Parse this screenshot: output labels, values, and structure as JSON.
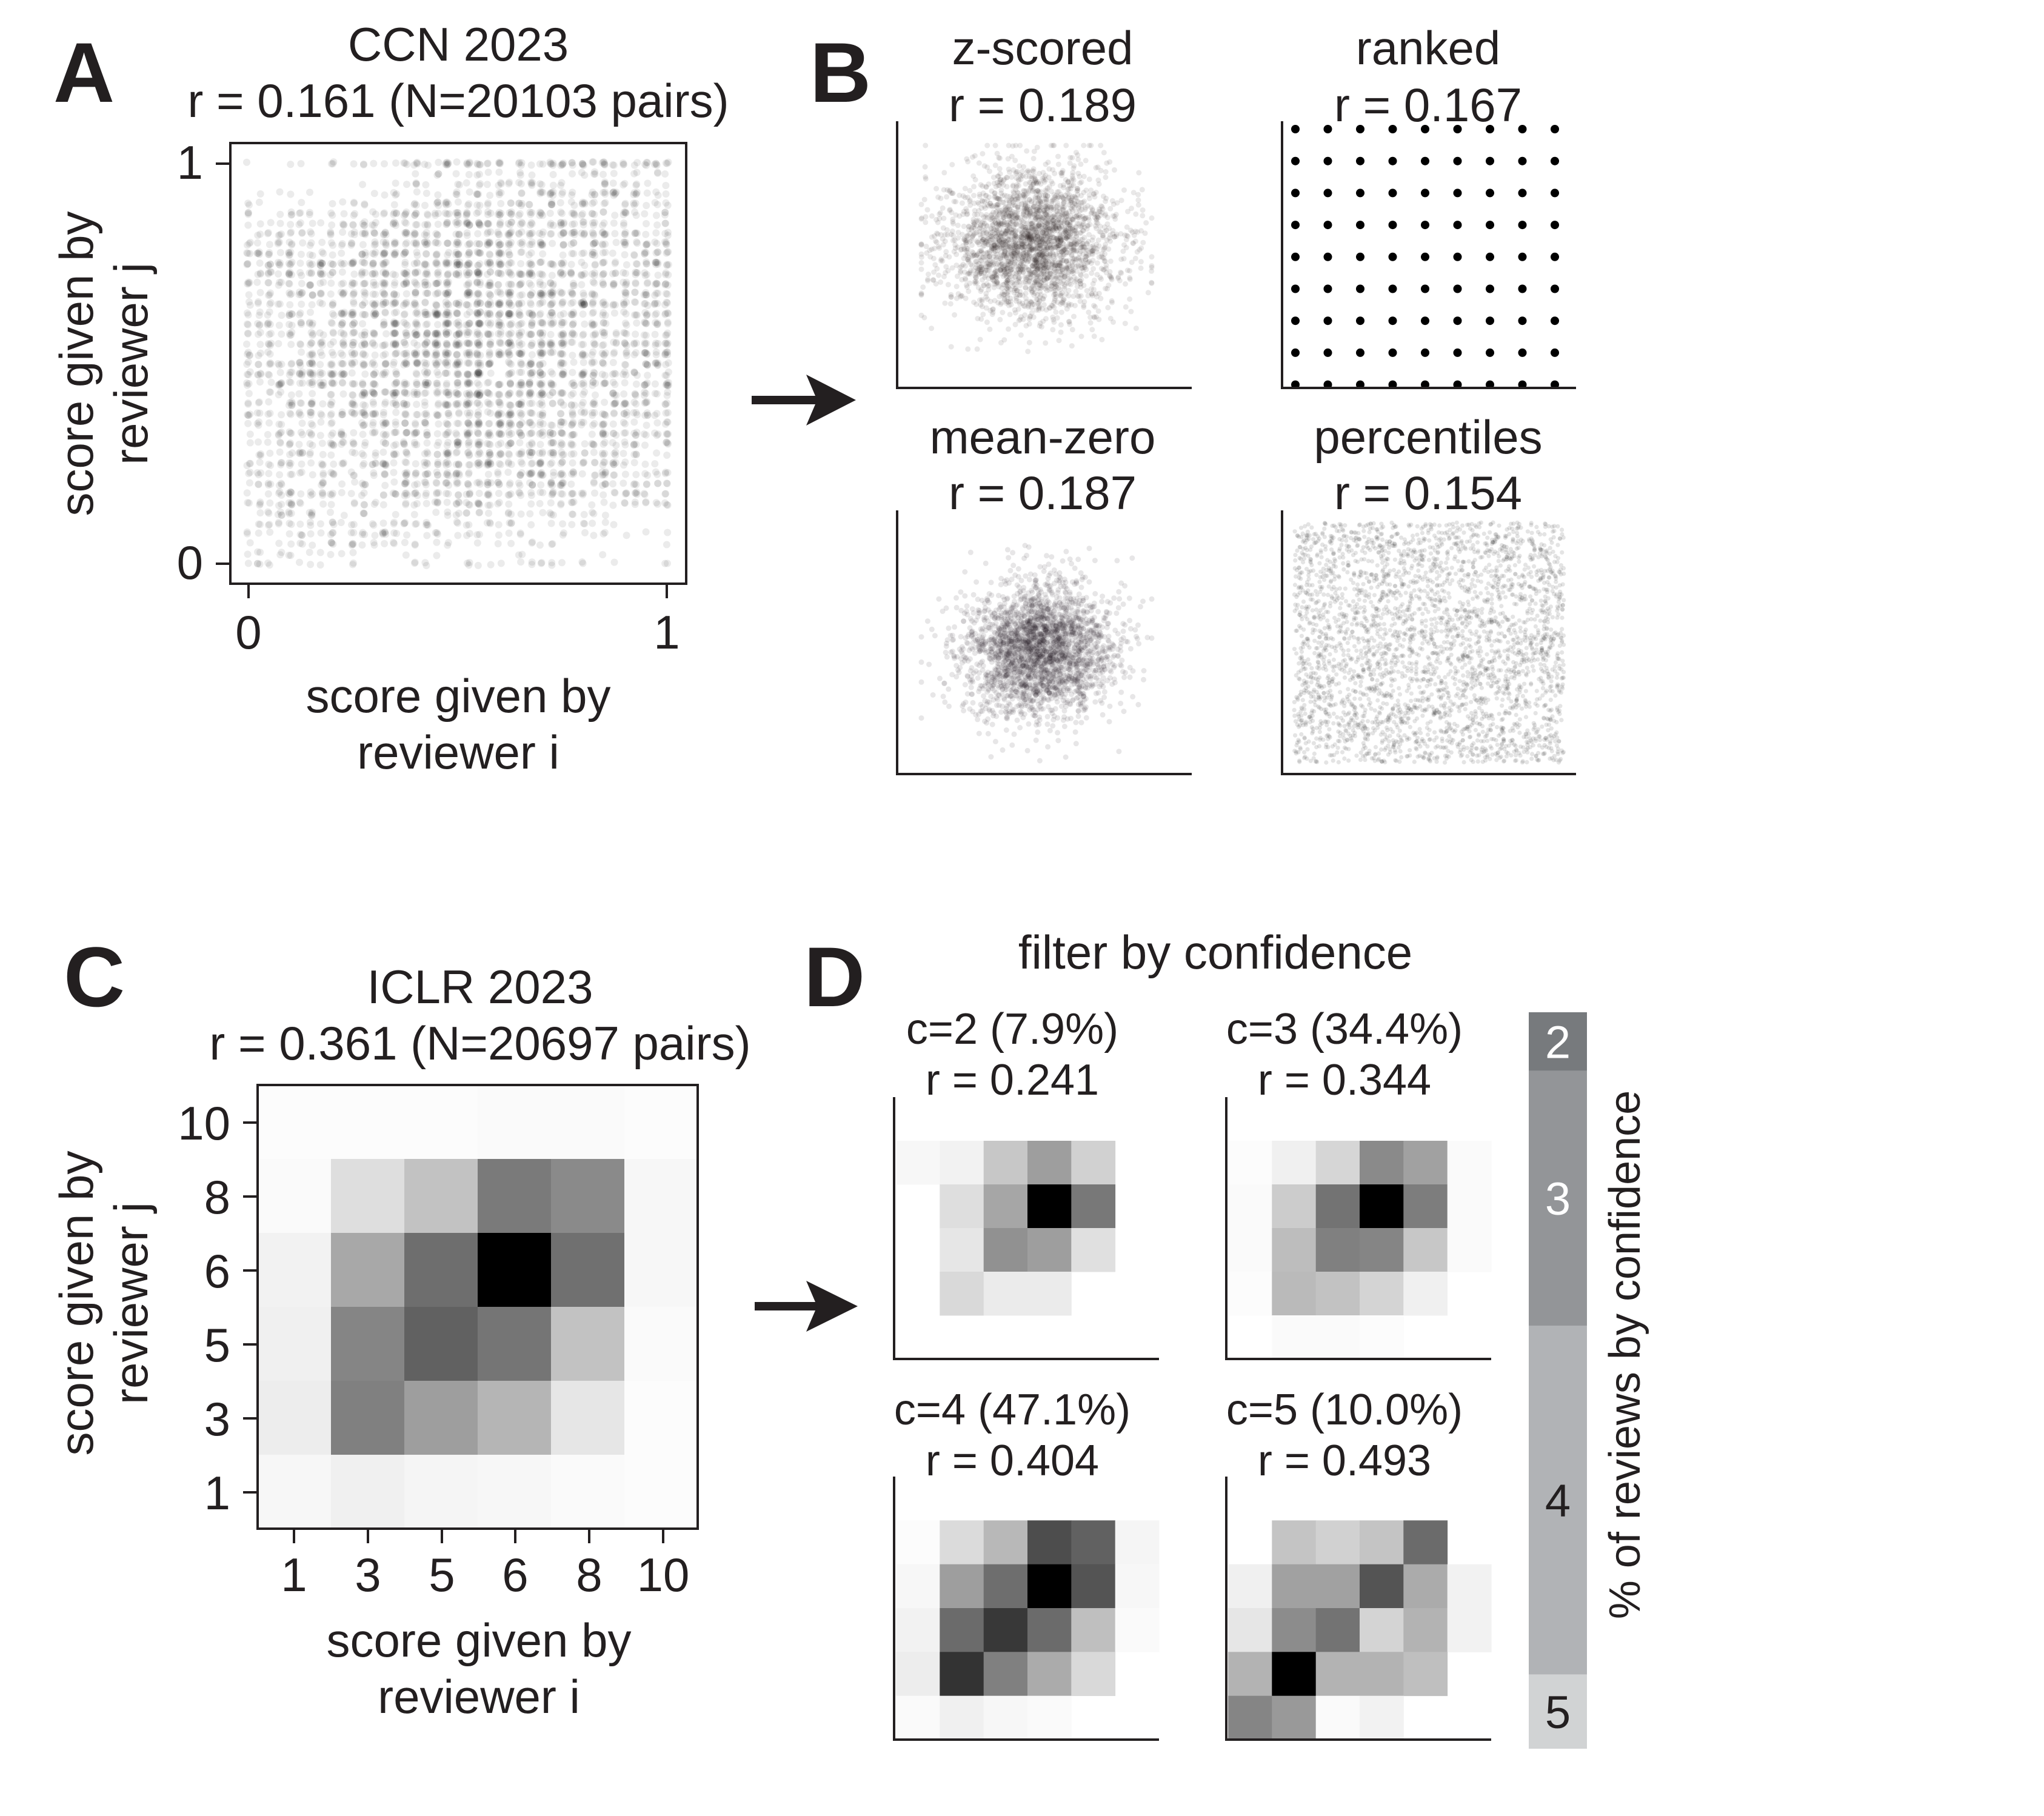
{
  "chart_data": [
    {
      "panel": "A",
      "type": "scatter",
      "title": "CCN 2023",
      "subtitle": "r = 0.161 (N=20103 pairs)",
      "xlabel": [
        "score given by",
        "reviewer i"
      ],
      "ylabel": [
        "score given by",
        "reviewer j"
      ],
      "xticks": [
        "0",
        "1"
      ],
      "yticks": [
        "0",
        "1"
      ],
      "xlim": [
        -0.05,
        1.05
      ],
      "ylim": [
        -0.05,
        1.05
      ],
      "r": 0.161,
      "n_pairs": 20103,
      "marker_color": "#231f20"
    },
    {
      "panel": "B",
      "type": "scatter",
      "subplots": [
        {
          "name": "z-scored",
          "r_label": "r = 0.189",
          "r": 0.189
        },
        {
          "name": "ranked",
          "r_label": "r = 0.167",
          "r": 0.167
        },
        {
          "name": "mean-zero",
          "r_label": "r = 0.187",
          "r": 0.187
        },
        {
          "name": "percentiles",
          "r_label": "r = 0.154",
          "r": 0.154
        }
      ]
    },
    {
      "panel": "C",
      "type": "heatmap",
      "title": "ICLR 2023",
      "subtitle": "r = 0.361 (N=20697 pairs)",
      "xlabel": [
        "score given by",
        "reviewer i"
      ],
      "ylabel": [
        "score given by",
        "reviewer j"
      ],
      "categories": [
        "1",
        "3",
        "5",
        "6",
        "8",
        "10"
      ],
      "values_rows_top_to_bottom": [
        [
          0.01,
          0.01,
          0.01,
          0.02,
          0.02,
          0.01
        ],
        [
          0.02,
          0.13,
          0.24,
          0.52,
          0.46,
          0.03
        ],
        [
          0.05,
          0.34,
          0.57,
          1.0,
          0.56,
          0.03
        ],
        [
          0.06,
          0.48,
          0.62,
          0.54,
          0.24,
          0.02
        ],
        [
          0.07,
          0.5,
          0.38,
          0.29,
          0.1,
          0.01
        ],
        [
          0.03,
          0.06,
          0.04,
          0.03,
          0.02,
          0.01
        ]
      ],
      "colormap": [
        "#ffffff",
        "#000000"
      ]
    },
    {
      "panel": "D",
      "type": "heatmap",
      "title": "filter by confidence",
      "subplots": [
        {
          "label": "c=2 (7.9%)",
          "r_label": "r = 0.241",
          "r": 0.241,
          "values_rows_top_to_bottom": [
            [
              0.0,
              0.0,
              0.0,
              0.0,
              0.0,
              0.0
            ],
            [
              0.03,
              0.05,
              0.22,
              0.38,
              0.18,
              0.0
            ],
            [
              0.0,
              0.13,
              0.35,
              1.0,
              0.53,
              0.0
            ],
            [
              0.0,
              0.1,
              0.43,
              0.38,
              0.12,
              0.0
            ],
            [
              0.0,
              0.15,
              0.08,
              0.08,
              0.0,
              0.0
            ],
            [
              0.0,
              0.0,
              0.0,
              0.0,
              0.0,
              0.0
            ]
          ]
        },
        {
          "label": "c=3 (34.4%)",
          "r_label": "r = 0.344",
          "r": 0.344,
          "values_rows_top_to_bottom": [
            [
              0.0,
              0.0,
              0.0,
              0.0,
              0.0,
              0.0
            ],
            [
              0.01,
              0.06,
              0.16,
              0.46,
              0.37,
              0.02
            ],
            [
              0.02,
              0.2,
              0.55,
              1.0,
              0.51,
              0.02
            ],
            [
              0.02,
              0.26,
              0.5,
              0.48,
              0.22,
              0.02
            ],
            [
              0.01,
              0.27,
              0.24,
              0.17,
              0.06,
              0.0
            ],
            [
              0.0,
              0.02,
              0.02,
              0.01,
              0.0,
              0.0
            ]
          ]
        },
        {
          "label": "c=4 (47.1%)",
          "r_label": "r = 0.404",
          "r": 0.404,
          "values_rows_top_to_bottom": [
            [
              0.0,
              0.0,
              0.0,
              0.0,
              0.0,
              0.0
            ],
            [
              0.01,
              0.14,
              0.28,
              0.7,
              0.62,
              0.04
            ],
            [
              0.03,
              0.38,
              0.57,
              1.0,
              0.67,
              0.03
            ],
            [
              0.05,
              0.58,
              0.78,
              0.58,
              0.25,
              0.02
            ],
            [
              0.07,
              0.8,
              0.5,
              0.33,
              0.15,
              0.0
            ],
            [
              0.02,
              0.06,
              0.03,
              0.02,
              0.0,
              0.0
            ]
          ]
        },
        {
          "label": "c=5 (10.0%)",
          "r_label": "r = 0.493",
          "r": 0.493,
          "values_rows_top_to_bottom": [
            [
              0.0,
              0.0,
              0.0,
              0.0,
              0.0,
              0.0
            ],
            [
              0.0,
              0.23,
              0.18,
              0.23,
              0.58,
              0.0
            ],
            [
              0.06,
              0.37,
              0.37,
              0.67,
              0.33,
              0.05
            ],
            [
              0.1,
              0.45,
              0.55,
              0.17,
              0.3,
              0.05
            ],
            [
              0.3,
              1.0,
              0.3,
              0.3,
              0.25,
              0.0
            ],
            [
              0.48,
              0.4,
              0.02,
              0.05,
              0.0,
              0.0
            ]
          ]
        }
      ],
      "stacked_bar": {
        "ylabel": "% of reviews by confidence",
        "segments": [
          {
            "label": "2",
            "value": 7.9,
            "color": "#777a7d",
            "text_color": "#ffffff"
          },
          {
            "label": "3",
            "value": 34.4,
            "color": "#939598",
            "text_color": "#ffffff"
          },
          {
            "label": "4",
            "value": 47.1,
            "color": "#b1b3b6",
            "text_color": "#231f20"
          },
          {
            "label": "5",
            "value": 10.0,
            "color": "#d1d3d4",
            "text_color": "#231f20"
          }
        ]
      }
    }
  ],
  "panel_labels": [
    "A",
    "B",
    "C",
    "D"
  ]
}
